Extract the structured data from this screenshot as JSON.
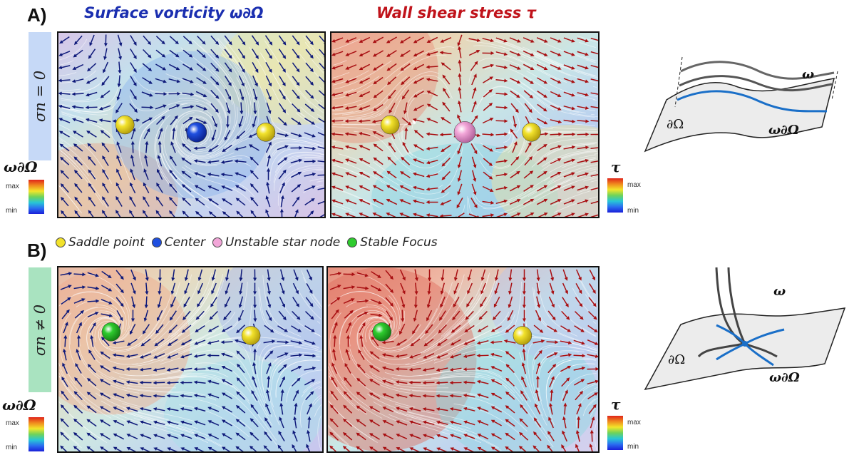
{
  "panel_a": {
    "label": "A)",
    "row_label": "σn = 0",
    "left_title": "Surface vorticity ω∂Ω",
    "right_title": "Wall shear stress τ",
    "left_critical_points": [
      "saddle",
      "center",
      "saddle"
    ],
    "right_critical_points": [
      "saddle",
      "unstable_star_node",
      "saddle"
    ]
  },
  "panel_b": {
    "label": "B)",
    "row_label": "σn ≠ 0",
    "left_critical_points": [
      "stable_focus",
      "saddle"
    ],
    "right_critical_points": [
      "stable_focus",
      "saddle"
    ]
  },
  "legend": {
    "items": [
      {
        "label": "Saddle point",
        "color": "#f2e22c"
      },
      {
        "label": "Center",
        "color": "#1f4fe0"
      },
      {
        "label": "Unstable star node",
        "color": "#f2a6d8"
      },
      {
        "label": "Stable Focus",
        "color": "#2ecc2e"
      }
    ]
  },
  "colorbars": {
    "vorticity_title": "ω∂Ω",
    "shear_title": "τ",
    "max_label": "max",
    "min_label": "min"
  },
  "sketches": {
    "omega": "ω",
    "boundary": "∂Ω",
    "omega_boundary": "ω∂Ω"
  },
  "colors": {
    "vorticity_title": "#1b2fb0",
    "shear_title": "#c0131b",
    "band_a": "#c6d9f7",
    "band_b": "#a9e3c0",
    "vorticity_arrow": "#0f1a7a",
    "shear_arrow": "#a80f12",
    "saddle": "#f2e22c",
    "center": "#1f4fe0",
    "star_node": "#f2a6d8",
    "focus": "#2ecc2e",
    "sketch_line": "#1a6fc8"
  }
}
